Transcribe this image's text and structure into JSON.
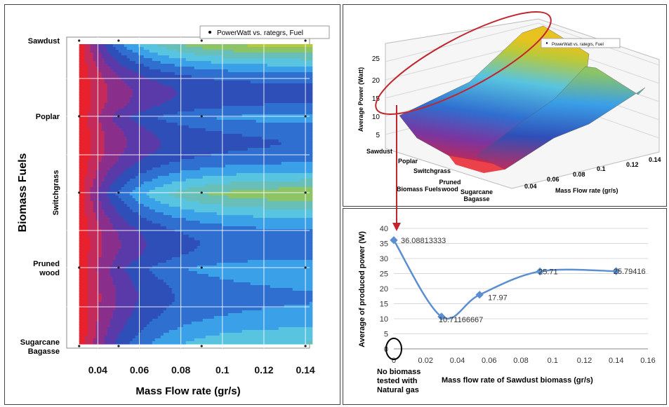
{
  "chart_data": [
    {
      "type": "heatmap",
      "subtype": "filled-contour",
      "xlabel": "Mass Flow rate (gr/s)",
      "ylabel": "Biomass Fuels",
      "x_ticks": [
        "0.04",
        "0.06",
        "0.08",
        "0.1",
        "0.12",
        "0.14"
      ],
      "x_tick_values": [
        0.04,
        0.06,
        0.08,
        0.1,
        0.12,
        0.14
      ],
      "xlim": [
        0.025,
        0.142
      ],
      "y_categories": [
        "Sawdust",
        "Poplar",
        "Switchgrass",
        "Pruned wood",
        "Sugarcane Bagasse"
      ],
      "legend": {
        "label": "PowerWatt vs. rategrs, Fuel",
        "position": "top-right"
      },
      "grid": true,
      "colormap": [
        "#e8212c",
        "#c42a5a",
        "#8a2f8c",
        "#5a3aa8",
        "#2f4fb8",
        "#2f6fd0",
        "#3aa0e8",
        "#58c4e0",
        "#68bfb8",
        "#8cc466",
        "#b9c93a",
        "#e8c21e"
      ]
    },
    {
      "type": "surface",
      "legend": {
        "label": "PowerWatt vs. rategrs, Fuel",
        "position": "top-right"
      },
      "zlabel": "Average Power (Watt)",
      "z_ticks": [
        "5",
        "10",
        "15",
        "20",
        "25"
      ],
      "x_ticks": [
        "0.04",
        "0.06",
        "0.08",
        "0.1",
        "0.12",
        "0.14"
      ],
      "xlabel": "Mass Flow rate (gr/s)",
      "y_categories": [
        "Sawdust",
        "Poplar",
        "Switchgrass",
        "Pruned wood",
        "Sugarcane Bagasse"
      ],
      "ylabel": "Biomass Fuels"
    },
    {
      "type": "line",
      "xlabel": "Mass flow rate of Sawdust biomass (gr/s)",
      "ylabel": "Average of produced power (W)",
      "xlim": [
        0,
        0.16
      ],
      "ylim": [
        0,
        40
      ],
      "x_ticks": [
        "0",
        "0.02",
        "0.04",
        "0.06",
        "0.08",
        "0.1",
        "0.12",
        "0.14",
        "0.16"
      ],
      "y_ticks": [
        "0",
        "5",
        "10",
        "15",
        "20",
        "25",
        "30",
        "35",
        "40"
      ],
      "series": [
        {
          "color": "#5b8fd0",
          "x": [
            0,
            0.03,
            0.054,
            0.092,
            0.14
          ],
          "y": [
            36.08813333,
            10.71166667,
            17.97,
            25.71,
            25.79416
          ],
          "labels": [
            "36.08813333",
            "10.71166667",
            "17.97",
            "25.71",
            "25.79416"
          ]
        }
      ],
      "annotation": "No biomass tested with Natural gas"
    }
  ]
}
